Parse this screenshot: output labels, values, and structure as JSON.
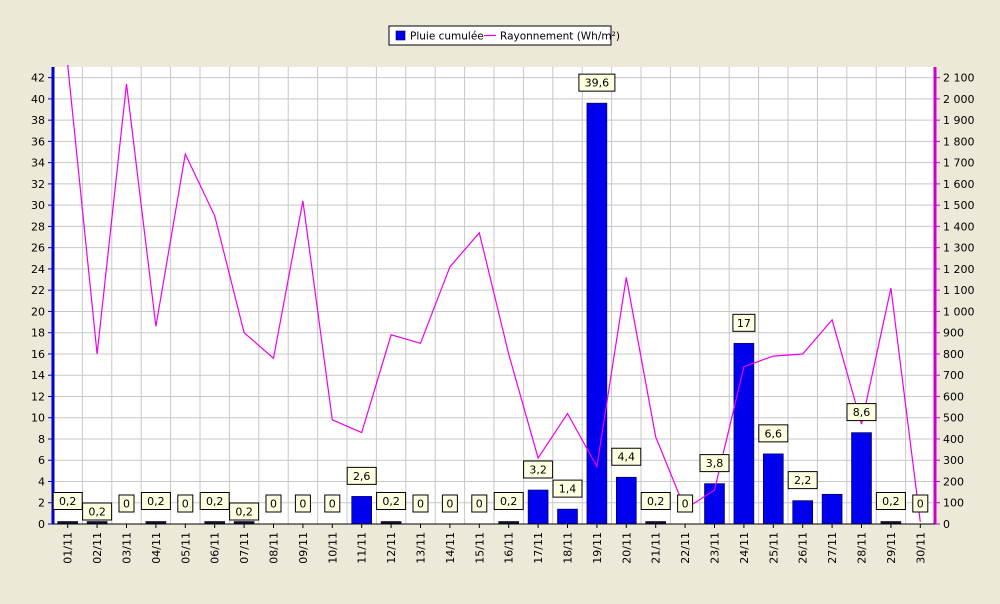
{
  "chart_data": {
    "type": "bar",
    "categories": [
      "01/11",
      "02/11",
      "03/11",
      "04/11",
      "05/11",
      "06/11",
      "07/11",
      "08/11",
      "09/11",
      "10/11",
      "11/11",
      "12/11",
      "13/11",
      "14/11",
      "15/11",
      "16/11",
      "17/11",
      "18/11",
      "19/11",
      "20/11",
      "21/11",
      "22/11",
      "23/11",
      "24/11",
      "25/11",
      "26/11",
      "27/11",
      "28/11",
      "29/11",
      "30/11"
    ],
    "series": [
      {
        "name": "Pluie cumulée",
        "type": "bar",
        "axis": "left",
        "color": "#0000ee",
        "values": [
          0.2,
          0.2,
          0,
          0.2,
          0,
          0.2,
          0.2,
          0,
          0,
          0,
          2.6,
          0.2,
          0,
          0,
          0,
          0.2,
          3.2,
          1.4,
          39.6,
          4.4,
          0.2,
          0,
          3.8,
          17,
          6.6,
          2.2,
          2.8,
          8.6,
          0.2,
          0
        ],
        "labels": [
          "0,2",
          "0,2",
          "0",
          "0,2",
          "0",
          "0,2",
          "0,2",
          "0",
          "0",
          "0",
          "2,6",
          "0,2",
          "0",
          "0",
          "0",
          "0,2",
          "3,2",
          "1,4",
          "39,6",
          "4,4",
          "0,2",
          "0",
          "3,8",
          "17",
          "6,6",
          "2,2",
          "",
          "8,6",
          "0,2",
          "0"
        ]
      },
      {
        "name": "Rayonnement (Wh/m²)",
        "type": "line",
        "axis": "right",
        "color": "#ee00ee",
        "values": [
          2160,
          800,
          2070,
          930,
          1740,
          1450,
          900,
          780,
          1520,
          490,
          430,
          890,
          850,
          1210,
          1370,
          800,
          310,
          520,
          270,
          1160,
          410,
          70,
          160,
          740,
          790,
          800,
          960,
          470,
          1110,
          10
        ]
      }
    ],
    "y_left": {
      "ylim": [
        0,
        43
      ],
      "ticks": [
        "0",
        "2",
        "4",
        "6",
        "8",
        "10",
        "12",
        "14",
        "16",
        "18",
        "20",
        "22",
        "24",
        "26",
        "28",
        "30",
        "32",
        "34",
        "36",
        "38",
        "40",
        "42"
      ],
      "tick_values": [
        0,
        2,
        4,
        6,
        8,
        10,
        12,
        14,
        16,
        18,
        20,
        22,
        24,
        26,
        28,
        30,
        32,
        34,
        36,
        38,
        40,
        42
      ]
    },
    "y_right": {
      "ylim": [
        0,
        2150
      ],
      "ticks": [
        "0",
        "100",
        "200",
        "300",
        "400",
        "500",
        "600",
        "700",
        "800",
        "900",
        "1 000",
        "1 100",
        "1 200",
        "1 300",
        "1 400",
        "1 500",
        "1 600",
        "1 700",
        "1 800",
        "1 900",
        "2 000",
        "2 100"
      ],
      "tick_values": [
        0,
        100,
        200,
        300,
        400,
        500,
        600,
        700,
        800,
        900,
        1000,
        1100,
        1200,
        1300,
        1400,
        1500,
        1600,
        1700,
        1800,
        1900,
        2000,
        2100
      ]
    },
    "grid": true,
    "legend_position": "top-center",
    "colors": {
      "background": "#ece9d8",
      "plot_background": "#ffffff",
      "grid": "#c8c8c8",
      "left_axis": "#0000cc",
      "right_axis": "#cc00cc",
      "label_box": "#ffffe1"
    }
  }
}
